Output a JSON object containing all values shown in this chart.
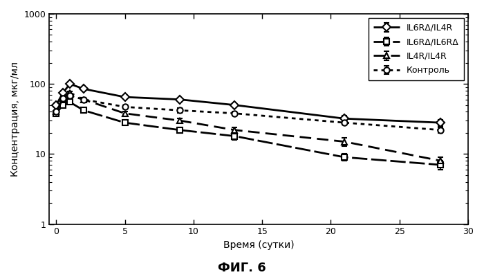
{
  "title": "ФИГ. 6",
  "xlabel": "Время (сутки)",
  "ylabel": "Концентрация, мкг/мл",
  "xlim": [
    -0.5,
    30
  ],
  "ylim": [
    1,
    1000
  ],
  "x_ticks": [
    0,
    5,
    10,
    15,
    20,
    25,
    30
  ],
  "series": [
    {
      "label": "IL6RΔ/IL4R",
      "linestyle": "solid",
      "marker": "D",
      "linewidth": 2.0,
      "markersize": 6,
      "x": [
        0,
        0.5,
        1,
        2,
        5,
        9,
        13,
        21,
        28
      ],
      "y": [
        50,
        75,
        100,
        85,
        65,
        60,
        50,
        32,
        28
      ],
      "yerr": [
        3,
        0,
        5,
        5,
        3,
        3,
        3,
        3,
        3
      ]
    },
    {
      "label": "IL6RΔ/IL6RΔ",
      "linestyle": "solid",
      "marker": "s",
      "linewidth": 2.0,
      "markersize": 6,
      "x": [
        0,
        0.5,
        1,
        2,
        5,
        9,
        13,
        21,
        28
      ],
      "y": [
        38,
        50,
        55,
        42,
        28,
        22,
        18,
        9,
        7
      ],
      "yerr": [
        2,
        0,
        3,
        3,
        2,
        2,
        2,
        1,
        1
      ]
    },
    {
      "label": "IL4R/IL4R",
      "linestyle": "dashed",
      "marker": "^",
      "linewidth": 2.0,
      "markersize": 6,
      "x": [
        0,
        0.5,
        1,
        2,
        5,
        9,
        13,
        21,
        28
      ],
      "y": [
        40,
        62,
        75,
        60,
        38,
        30,
        22,
        15,
        8
      ],
      "yerr": [
        2,
        0,
        4,
        4,
        2,
        2,
        2,
        2,
        1
      ]
    },
    {
      "label": "Контроль",
      "linestyle": "dotted",
      "marker": "o",
      "linewidth": 2.0,
      "markersize": 6,
      "x": [
        0,
        0.5,
        1,
        2,
        5,
        9,
        13,
        21,
        28
      ],
      "y": [
        40,
        62,
        68,
        60,
        47,
        42,
        38,
        28,
        22
      ],
      "yerr": [
        2,
        0,
        4,
        4,
        3,
        3,
        2,
        2,
        2
      ]
    }
  ],
  "background_color": "#ffffff",
  "fig_title_fontsize": 13,
  "axis_label_fontsize": 10,
  "tick_fontsize": 9,
  "legend_fontsize": 9
}
